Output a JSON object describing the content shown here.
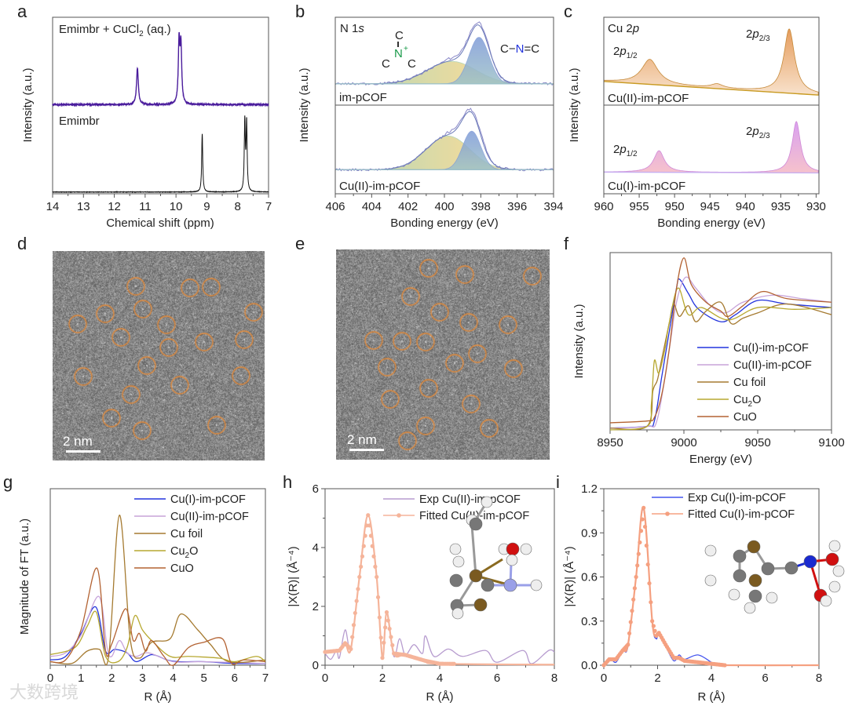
{
  "panel_labels": [
    "a",
    "b",
    "c",
    "d",
    "e",
    "f",
    "g",
    "h",
    "i"
  ],
  "colors": {
    "purple_nmr": "#4a1c9c",
    "black": "#111111",
    "cu1": "#2233dd",
    "cu2": "#c7a3d9",
    "cufoil": "#a57a30",
    "cu2o": "#b7a830",
    "cuo": "#b36232",
    "fit": "#f5b49a",
    "micro_circle": "#e08a3c"
  },
  "micrographs": {
    "d": {
      "scale_bar": "2 nm"
    },
    "e": {
      "scale_bar": "2 nm"
    }
  },
  "watermark": "大数跨境",
  "chart_data": [
    {
      "id": "a",
      "type": "line",
      "xlabel": "Chemical shift (ppm)",
      "ylabel": "Intensity (a.u.)",
      "xlim": [
        14,
        7
      ],
      "ylim": [
        -0.02,
        2.0
      ],
      "xticks": [
        14,
        13,
        12,
        11,
        10,
        9,
        8,
        7
      ],
      "series": [
        {
          "name": "Emimbr + CuCl2 (aq.)",
          "label_main": "Emimbr + CuCl",
          "label_sub": "2",
          "label_tail": " (aq.)",
          "color": "#4a1c9c",
          "baseline": 1.0,
          "peaks": [
            {
              "center": 11.25,
              "height": 0.42,
              "width": 0.035
            },
            {
              "center": 9.9,
              "height": 0.7,
              "width": 0.03
            },
            {
              "center": 9.84,
              "height": 0.64,
              "width": 0.03
            }
          ]
        },
        {
          "name": "Emimbr",
          "label_main": "Emimbr",
          "color": "#111111",
          "baseline": 0.0,
          "peaks": [
            {
              "center": 9.15,
              "height": 0.67,
              "width": 0.02
            },
            {
              "center": 7.77,
              "height": 0.8,
              "width": 0.02
            },
            {
              "center": 7.71,
              "height": 0.78,
              "width": 0.02
            }
          ]
        }
      ]
    },
    {
      "id": "b",
      "type": "area",
      "title": "N 1s",
      "title_main": "N 1",
      "title_italic": "s",
      "xlabel": "Bonding energy (eV)",
      "ylabel": "Intensity (a.u.)",
      "xlim": [
        406,
        394
      ],
      "ylim": [
        0,
        2.2
      ],
      "xticks": [
        406,
        404,
        402,
        400,
        398,
        396,
        394
      ],
      "annotations": {
        "imine_top": "C",
        "imine_n": "N",
        "imine_plus": "+",
        "imine_left": "C",
        "imine_right": "C",
        "cnc": [
          "C",
          "−",
          "N",
          "=C"
        ]
      },
      "subplots": [
        {
          "label": "im-pCOF",
          "baseline": 1.37,
          "components": [
            {
              "name": "C=N+",
              "center": 399.6,
              "height": 0.28,
              "sigma": 1.35
            },
            {
              "name": "C-N=C",
              "center": 398.1,
              "height": 0.58,
              "sigma": 0.55
            }
          ]
        },
        {
          "label": "Cu(II)-im-pCOF",
          "baseline": 0.3,
          "components": [
            {
              "name": "C=N+",
              "center": 399.8,
              "height": 0.42,
              "sigma": 1.2
            },
            {
              "name": "C-N=C",
              "center": 398.5,
              "height": 0.48,
              "sigma": 0.5
            }
          ]
        }
      ]
    },
    {
      "id": "c",
      "type": "area",
      "title": "Cu 2p",
      "title_main": "Cu 2",
      "title_italic": "p",
      "xlabel": "Bonding energy (eV)",
      "ylabel": "Intensity (a.u.)",
      "xlim": [
        960,
        929.6
      ],
      "ylim": [
        0,
        2.2
      ],
      "xticks": [
        960,
        955,
        950,
        945,
        940,
        935,
        930
      ],
      "peak_labels": {
        "p12": [
          "2",
          "p",
          "1/2"
        ],
        "p23": [
          "2",
          "p",
          "2/3"
        ]
      },
      "subplots": [
        {
          "label": "Cu(II)-im-pCOF",
          "baseline_start": 1.4,
          "baseline_end": 1.23,
          "peaks": [
            {
              "center": 953.5,
              "height": 0.31,
              "width": 1.4
            },
            {
              "center": 944.0,
              "height": 0.05,
              "width": 1.0
            },
            {
              "center": 933.8,
              "height": 0.8,
              "width": 0.9
            }
          ]
        },
        {
          "label": "Cu(I)-im-pCOF",
          "baseline_start": 0.27,
          "baseline_end": 0.26,
          "peaks": [
            {
              "center": 952.2,
              "height": 0.27,
              "width": 0.9
            },
            {
              "center": 932.8,
              "height": 0.64,
              "width": 0.7
            }
          ]
        }
      ]
    },
    {
      "id": "f",
      "type": "line",
      "xlabel": "Energy (eV)",
      "ylabel": "Intensity (a.u.)",
      "xlim": [
        8950,
        9100
      ],
      "ylim": [
        0,
        1
      ],
      "xticks": [
        8950,
        9000,
        9050,
        9100
      ],
      "legend_position": "bottom-right",
      "series": [
        {
          "name": "Cu(I)-im-pCOF",
          "color": "#2233dd",
          "x": [
            8950,
            8975,
            8980,
            8985,
            8990,
            8995,
            8997,
            9003,
            9010,
            9025,
            9035,
            9050,
            9070,
            9100
          ],
          "y": [
            0.01,
            0.02,
            0.05,
            0.3,
            0.55,
            0.8,
            0.85,
            0.77,
            0.68,
            0.61,
            0.65,
            0.73,
            0.71,
            0.69
          ]
        },
        {
          "name": "Cu(II)-im-pCOF",
          "color": "#c7a3d9",
          "x": [
            8950,
            8975,
            8982,
            8990,
            8995,
            9001,
            9008,
            9018,
            9028,
            9040,
            9060,
            9080,
            9100
          ],
          "y": [
            0.01,
            0.02,
            0.06,
            0.45,
            0.72,
            0.86,
            0.8,
            0.7,
            0.66,
            0.72,
            0.76,
            0.74,
            0.72
          ]
        },
        {
          "name": "Cu foil",
          "color": "#a57a30",
          "x": [
            8950,
            8975,
            8979,
            8982,
            8985,
            8990,
            8993,
            8997,
            9003,
            9008,
            9015,
            9025,
            9032,
            9040,
            9050,
            9070,
            9100
          ],
          "y": [
            0.01,
            0.02,
            0.22,
            0.28,
            0.4,
            0.6,
            0.71,
            0.64,
            0.7,
            0.61,
            0.67,
            0.72,
            0.6,
            0.63,
            0.66,
            0.71,
            0.65
          ]
        },
        {
          "name": "Cu2O",
          "name_main": "Cu",
          "name_sub": "2",
          "name_tail": "O",
          "color": "#b7a830",
          "x": [
            8950,
            8975,
            8978,
            8980,
            8983,
            8987,
            8990,
            8996,
            9003,
            9012,
            9030,
            9050,
            9075,
            9100
          ],
          "y": [
            0.0,
            0.02,
            0.15,
            0.39,
            0.32,
            0.45,
            0.6,
            0.8,
            0.65,
            0.69,
            0.62,
            0.69,
            0.68,
            0.69
          ]
        },
        {
          "name": "CuO",
          "color": "#b36232",
          "x": [
            8950,
            8975,
            8980,
            8985,
            8990,
            8995,
            9000,
            9005,
            9015,
            9025,
            9030,
            9040,
            9053,
            9070,
            9100
          ],
          "y": [
            0.04,
            0.05,
            0.07,
            0.2,
            0.45,
            0.8,
            0.97,
            0.82,
            0.72,
            0.67,
            0.64,
            0.7,
            0.78,
            0.74,
            0.72
          ]
        }
      ]
    },
    {
      "id": "g",
      "type": "line",
      "xlabel": "R (Å)",
      "ylabel": "Magnitude of FT (a.u.)",
      "xlim": [
        0,
        7
      ],
      "ylim": [
        0,
        1
      ],
      "xticks": [
        0,
        1,
        2,
        3,
        4,
        5,
        6,
        7
      ],
      "legend_position": "top-right",
      "series": [
        {
          "name": "Cu(I)-im-pCOF",
          "color": "#2233dd",
          "x": [
            0,
            0.5,
            1,
            1.48,
            1.8,
            2.1,
            2.5,
            2.8,
            3.3,
            3.8,
            4.2,
            5,
            6,
            7
          ],
          "y": [
            0.03,
            0.05,
            0.18,
            0.33,
            0.08,
            0.09,
            0.07,
            0.02,
            0.06,
            0.03,
            0.02,
            0.02,
            0.01,
            0.01
          ]
        },
        {
          "name": "Cu(II)-im-pCOF",
          "color": "#c7a3d9",
          "x": [
            0,
            0.5,
            1,
            1.58,
            1.85,
            2.0,
            2.25,
            2.5,
            2.8,
            3.2,
            4,
            5,
            7
          ],
          "y": [
            0.05,
            0.07,
            0.17,
            0.39,
            0.1,
            0.05,
            0.14,
            0.07,
            0.05,
            0.07,
            0.02,
            0.02,
            0.01
          ]
        },
        {
          "name": "Cu foil",
          "color": "#a57a30",
          "x": [
            0,
            0.7,
            1.2,
            1.6,
            1.9,
            2.25,
            2.6,
            2.9,
            3.3,
            3.9,
            4.25,
            4.8,
            5.2,
            5.8,
            7
          ],
          "y": [
            0.02,
            0.01,
            0.08,
            0.09,
            0.05,
            0.85,
            0.15,
            0.04,
            0.13,
            0.15,
            0.29,
            0.2,
            0.12,
            0.02,
            0.03
          ]
        },
        {
          "name": "Cu2O",
          "name_main": "Cu",
          "name_sub": "2",
          "name_tail": "O",
          "color": "#b7a830",
          "x": [
            0,
            0.8,
            1.2,
            1.5,
            1.8,
            2.2,
            2.5,
            2.75,
            3.0,
            3.3,
            3.9,
            4.5,
            5.5,
            6,
            6.7,
            7
          ],
          "y": [
            0.06,
            0.1,
            0.22,
            0.3,
            0.05,
            0.02,
            0.1,
            0.28,
            0.2,
            0.14,
            0.05,
            0.05,
            0.04,
            0.02,
            0.05,
            0.02
          ]
        },
        {
          "name": "CuO",
          "color": "#b36232",
          "x": [
            0,
            0.5,
            1,
            1.52,
            1.8,
            2.0,
            2.45,
            2.7,
            2.9,
            3.1,
            3.3,
            3.7,
            4,
            4.5,
            5,
            5.6,
            5.9,
            6.3,
            7
          ],
          "y": [
            0.02,
            0.03,
            0.2,
            0.55,
            0.08,
            0.12,
            0.32,
            0.14,
            0.18,
            0.08,
            0.14,
            0.05,
            0.0,
            0.1,
            0.13,
            0.15,
            0.01,
            0.03,
            0.02
          ]
        }
      ]
    },
    {
      "id": "h",
      "type": "line",
      "xlabel": "R (Å)",
      "ylabel": "|X(R)| (Å⁻⁴)",
      "xlim": [
        0,
        8
      ],
      "ylim": [
        0,
        6
      ],
      "xticks": [
        0,
        2,
        4,
        6,
        8
      ],
      "yticks": [
        0,
        2,
        4,
        6
      ],
      "ytick_labels": [
        "0",
        "2",
        "4",
        "6"
      ],
      "legend_position": "top-right",
      "series": [
        {
          "name": "Exp Cu(II)-im-pCOF",
          "color": "#b79ccf",
          "x": [
            0,
            0.2,
            0.4,
            0.5,
            0.7,
            0.9,
            1.2,
            1.5,
            1.8,
            2.0,
            2.15,
            2.4,
            2.6,
            2.8,
            3.1,
            3.4,
            3.5,
            3.8,
            4.3,
            4.8,
            5.6,
            6,
            6.9,
            7.2,
            7.8,
            8
          ],
          "y": [
            0.4,
            0.2,
            0.5,
            0.25,
            1.2,
            0.6,
            3,
            5.1,
            3.0,
            0.3,
            1.75,
            0.3,
            0.9,
            0.35,
            0.7,
            0.4,
            1.0,
            0.3,
            0.55,
            0.3,
            0.5,
            0.1,
            0.5,
            0.05,
            0.5,
            0.45
          ]
        },
        {
          "name": "Fitted Cu(II)-im-pCOF",
          "color": "#f5b49a",
          "markers": true,
          "x": [
            0,
            0.5,
            0.7,
            0.9,
            1.2,
            1.5,
            1.8,
            2.0,
            2.15,
            2.4,
            2.8,
            3.5,
            4,
            8
          ],
          "y": [
            0.45,
            0.5,
            0.75,
            0.55,
            3,
            5.1,
            3,
            0.25,
            1.8,
            0.4,
            0.35,
            0.15,
            0.05,
            0.02
          ]
        }
      ]
    },
    {
      "id": "i",
      "type": "line",
      "xlabel": "R (Å)",
      "ylabel": "|X(R)| (Å⁻⁴)",
      "xlim": [
        0,
        8
      ],
      "ylim": [
        0,
        1.2
      ],
      "xticks": [
        0,
        2,
        4,
        6,
        8
      ],
      "yticks": [
        0,
        0.3,
        0.6,
        0.9,
        1.2
      ],
      "ytick_labels": [
        "0.0",
        "0.3",
        "0.6",
        "0.9",
        "1.2"
      ],
      "legend_position": "top-right",
      "series": [
        {
          "name": "Exp Cu(I)-im-pCOF",
          "color": "#4455ee",
          "x": [
            0,
            0.2,
            0.45,
            0.7,
            0.9,
            1.2,
            1.48,
            1.8,
            1.95,
            2.05,
            2.3,
            2.6,
            2.8,
            3.0,
            3.5,
            4,
            4.2,
            8
          ],
          "y": [
            0,
            0.05,
            0.02,
            0.1,
            0.13,
            0.6,
            1.06,
            0.3,
            0.18,
            0.22,
            0.13,
            0.03,
            0.07,
            0.04,
            0.07,
            0.02,
            0.0,
            0.0
          ]
        },
        {
          "name": "Fitted Cu(I)-im-pCOF",
          "color": "#f5a080",
          "markers": true,
          "x": [
            0,
            0.2,
            0.45,
            0.7,
            0.9,
            1.2,
            1.48,
            1.8,
            1.95,
            2.05,
            2.3,
            2.6,
            2.8,
            3.0,
            3.5,
            4,
            4.5,
            8
          ],
          "y": [
            0,
            0.04,
            0.04,
            0.1,
            0.14,
            0.6,
            1.07,
            0.3,
            0.2,
            0.22,
            0.14,
            0.05,
            0.05,
            0.03,
            0.02,
            0.01,
            0.0,
            0.0
          ]
        }
      ]
    }
  ]
}
